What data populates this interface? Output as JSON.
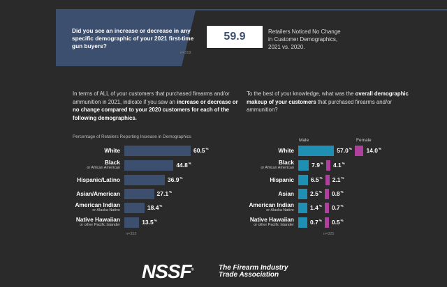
{
  "top": {
    "question": "Did you see an increase or decrease in any specific demographic of your 2021 first-time gun buyers?",
    "n": "n=319",
    "stat": "59.9",
    "stat_text_lines": [
      "Retailers Noticed No Change",
      "in Customer Demographics,",
      "2021 vs. 2020."
    ]
  },
  "left": {
    "q_plain": "In terms of ALL of your customers that purchased firearms and/or ammunition in 2021, indicate if you saw an ",
    "q_bold": "increase or decrease or no change compared to your 2020 customers for each of the following demographics.",
    "subtitle": "Percentage of Retailers Reporting Increase in Demographics",
    "n": "n=352"
  },
  "right": {
    "q_plain1": "To the best of your knowledge, what was the ",
    "q_bold": "overall demographic makeup of your customers",
    "q_plain2": " that purchased firearms and/or ammunition?",
    "male_label": "Male",
    "female_label": "Female",
    "n": "n=325"
  },
  "chart_data": [
    {
      "type": "bar",
      "title": "Percentage of Retailers Reporting Increase in Demographics",
      "categories": [
        "White",
        "Black",
        "Hispanic/Latino",
        "Asian/American",
        "American Indian",
        "Native Hawaiian"
      ],
      "sublabels": [
        "",
        "or African American",
        "",
        "",
        "or Alaska Native",
        "or other Pacific Islander"
      ],
      "values": [
        60.5,
        44.8,
        36.9,
        27.1,
        18.4,
        13.5
      ],
      "unit": "%",
      "color": "#3d4f6e"
    },
    {
      "type": "bar",
      "categories": [
        "White",
        "Black",
        "Hispanic",
        "Asian",
        "American Indian",
        "Native Hawaiian"
      ],
      "sublabels": [
        "",
        "or African American",
        "",
        "",
        "or Alaska Native",
        "or other Pacific Islander"
      ],
      "series": [
        {
          "name": "Male",
          "values": [
            57.0,
            7.9,
            6.5,
            2.5,
            1.4,
            0.7
          ],
          "color": "#1f8fb3"
        },
        {
          "name": "Female",
          "values": [
            14.0,
            4.1,
            2.1,
            0.8,
            0.7,
            0.5
          ],
          "color": "#b0409e"
        }
      ],
      "unit": "%"
    }
  ],
  "footer": {
    "logo": "NSSF",
    "tagline_lines": [
      "The Firearm Industry",
      "Trade Association"
    ]
  }
}
